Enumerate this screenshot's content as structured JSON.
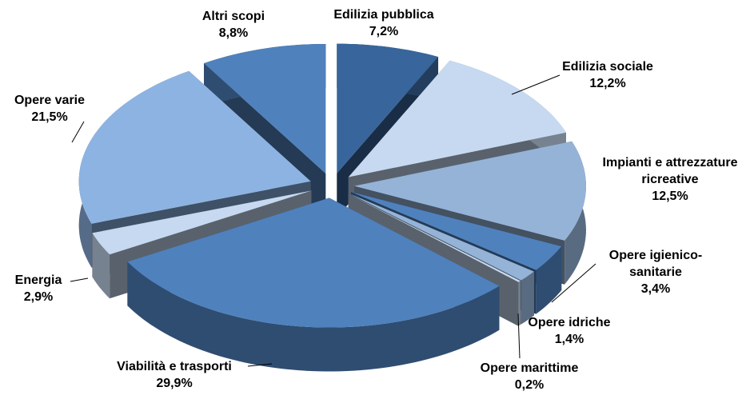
{
  "chart_data": {
    "type": "pie3d",
    "categories": [
      "Edilizia pubblica",
      "Edilizia sociale",
      "Impianti e attrezzature ricreative",
      "Opere igienico-sanitarie",
      "Opere idriche",
      "Opere marittime",
      "Viabilità e trasporti",
      "Energia",
      "Opere varie",
      "Altri scopi"
    ],
    "values": [
      7.2,
      12.2,
      12.5,
      3.4,
      1.4,
      0.2,
      29.9,
      2.9,
      21.5,
      8.8
    ],
    "value_labels": [
      "7,2%",
      "12,2%",
      "12,5%",
      "3,4%",
      "1,4%",
      "0,2%",
      "29,9%",
      "2,9%",
      "21,5%",
      "8,8%"
    ],
    "colors": [
      "#38659b",
      "#c6d9f0",
      "#95b3d7",
      "#4f81bd",
      "#95b3d7",
      "#c6d9f0",
      "#4f81bd",
      "#c6d9f0",
      "#8db3e2",
      "#4f81bd"
    ]
  }
}
